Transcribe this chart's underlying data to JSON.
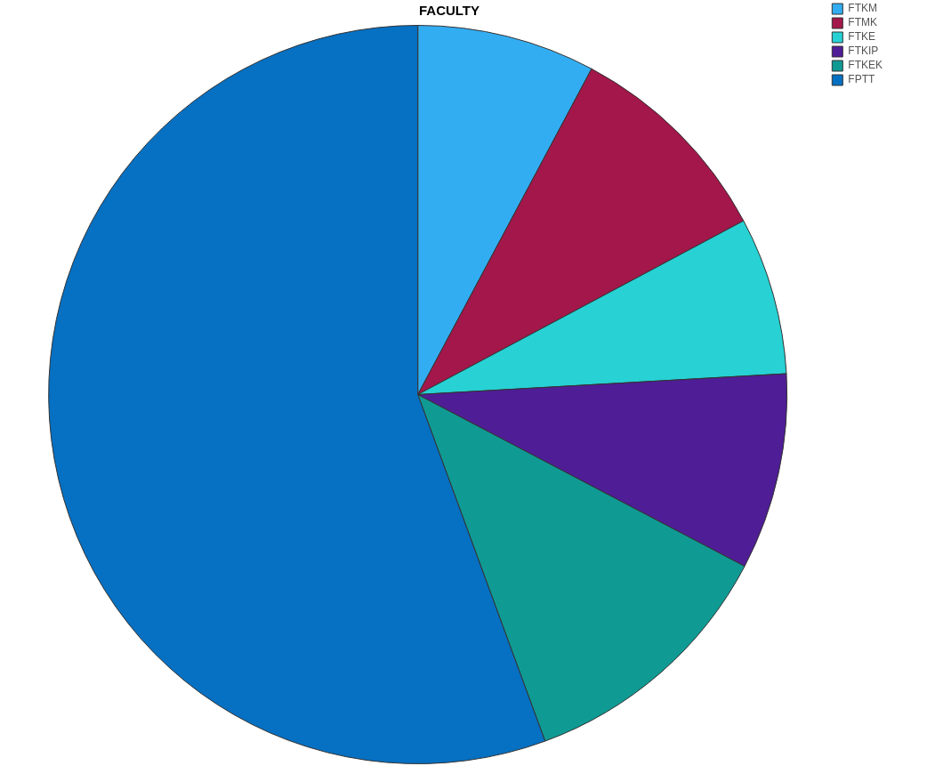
{
  "chart_data": {
    "type": "pie",
    "title": "FACULTY",
    "categories": [
      "FTKM",
      "FTMK",
      "FTKE",
      "FTKIP",
      "FTKEK",
      "FPTT"
    ],
    "values": [
      7.8,
      9.4,
      6.9,
      8.6,
      11.7,
      55.6
    ],
    "colors": [
      "#33adf2",
      "#a3174a",
      "#27d1d4",
      "#4f1d96",
      "#109a94",
      "#0670c2"
    ],
    "legend": "top right"
  }
}
